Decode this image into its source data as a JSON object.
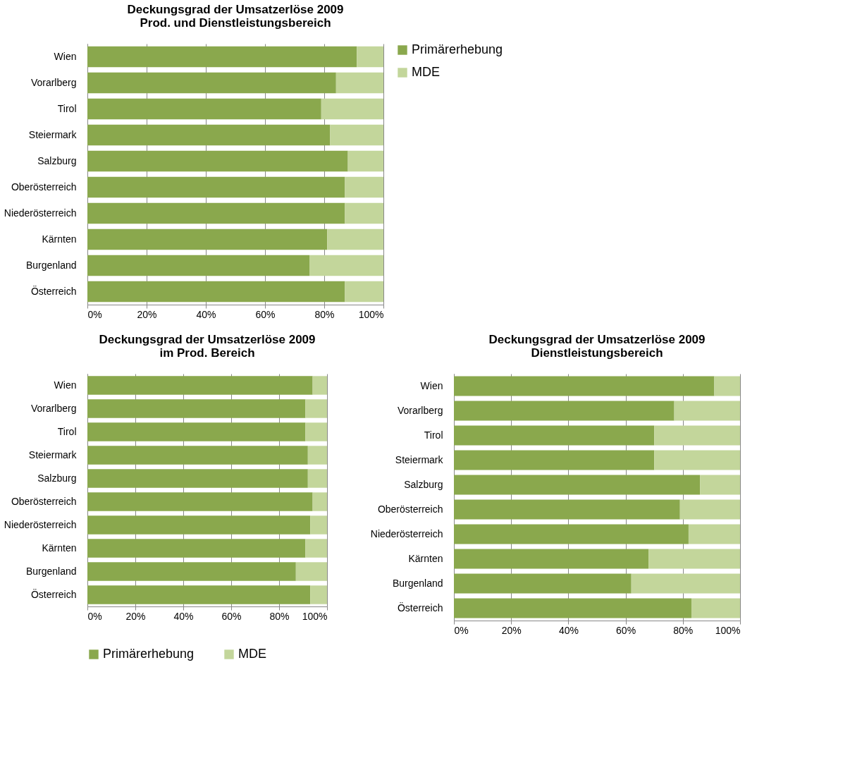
{
  "chart_data": [
    {
      "type": "bar",
      "orientation": "horizontal",
      "stacked": true,
      "title": "Deckungsgrad der Umsatzerlöse 2009\nProd. und Dienstleistungsbereich",
      "categories": [
        "Wien",
        "Vorarlberg",
        "Tirol",
        "Steiermark",
        "Salzburg",
        "Oberösterreich",
        "Niederösterreich",
        "Kärnten",
        "Burgenland",
        "Österreich"
      ],
      "series": [
        {
          "name": "Primärerhebung",
          "color": "#8aa84d",
          "values": [
            91,
            84,
            79,
            82,
            88,
            87,
            87,
            81,
            75,
            87
          ]
        },
        {
          "name": "MDE",
          "color": "#c3d69b",
          "values": [
            9,
            16,
            21,
            18,
            12,
            13,
            13,
            19,
            25,
            13
          ]
        }
      ],
      "xlim": [
        0,
        100
      ],
      "xticks": [
        {
          "value": 0,
          "label": "0%"
        },
        {
          "value": 20,
          "label": "20%"
        },
        {
          "value": 40,
          "label": "40%"
        },
        {
          "value": 60,
          "label": "60%"
        },
        {
          "value": 80,
          "label": "80%"
        },
        {
          "value": 100,
          "label": "100%"
        }
      ],
      "grid": "x",
      "legend": "right"
    },
    {
      "type": "bar",
      "orientation": "horizontal",
      "stacked": true,
      "title": "Deckungsgrad der Umsatzerlöse 2009\nim Prod. Bereich",
      "categories": [
        "Wien",
        "Vorarlberg",
        "Tirol",
        "Steiermark",
        "Salzburg",
        "Oberösterreich",
        "Niederösterreich",
        "Kärnten",
        "Burgenland",
        "Österreich"
      ],
      "series": [
        {
          "name": "Primärerhebung",
          "color": "#8aa84d",
          "values": [
            94,
            91,
            91,
            92,
            92,
            94,
            93,
            91,
            87,
            93
          ]
        },
        {
          "name": "MDE",
          "color": "#c3d69b",
          "values": [
            6,
            9,
            9,
            8,
            8,
            6,
            7,
            9,
            13,
            7
          ]
        }
      ],
      "xlim": [
        0,
        100
      ],
      "xticks": [
        {
          "value": 0,
          "label": "0%"
        },
        {
          "value": 20,
          "label": "20%"
        },
        {
          "value": 40,
          "label": "40%"
        },
        {
          "value": 60,
          "label": "60%"
        },
        {
          "value": 80,
          "label": "80%"
        },
        {
          "value": 100,
          "label": "100%"
        }
      ],
      "grid": "x",
      "legend": "bottom"
    },
    {
      "type": "bar",
      "orientation": "horizontal",
      "stacked": true,
      "title": "Deckungsgrad der Umsatzerlöse 2009\nDienstleistungsbereich",
      "categories": [
        "Wien",
        "Vorarlberg",
        "Tirol",
        "Steiermark",
        "Salzburg",
        "Oberösterreich",
        "Niederösterreich",
        "Kärnten",
        "Burgenland",
        "Österreich"
      ],
      "series": [
        {
          "name": "Primärerhebung",
          "color": "#8aa84d",
          "values": [
            91,
            77,
            70,
            70,
            86,
            79,
            82,
            68,
            62,
            83
          ]
        },
        {
          "name": "MDE",
          "color": "#c3d69b",
          "values": [
            9,
            23,
            30,
            30,
            14,
            21,
            18,
            32,
            38,
            17
          ]
        }
      ],
      "xlim": [
        0,
        100
      ],
      "xticks": [
        {
          "value": 0,
          "label": "0%"
        },
        {
          "value": 20,
          "label": "20%"
        },
        {
          "value": 40,
          "label": "40%"
        },
        {
          "value": 60,
          "label": "60%"
        },
        {
          "value": 80,
          "label": "80%"
        },
        {
          "value": 100,
          "label": "100%"
        }
      ],
      "grid": "x",
      "legend": "bottom"
    }
  ]
}
